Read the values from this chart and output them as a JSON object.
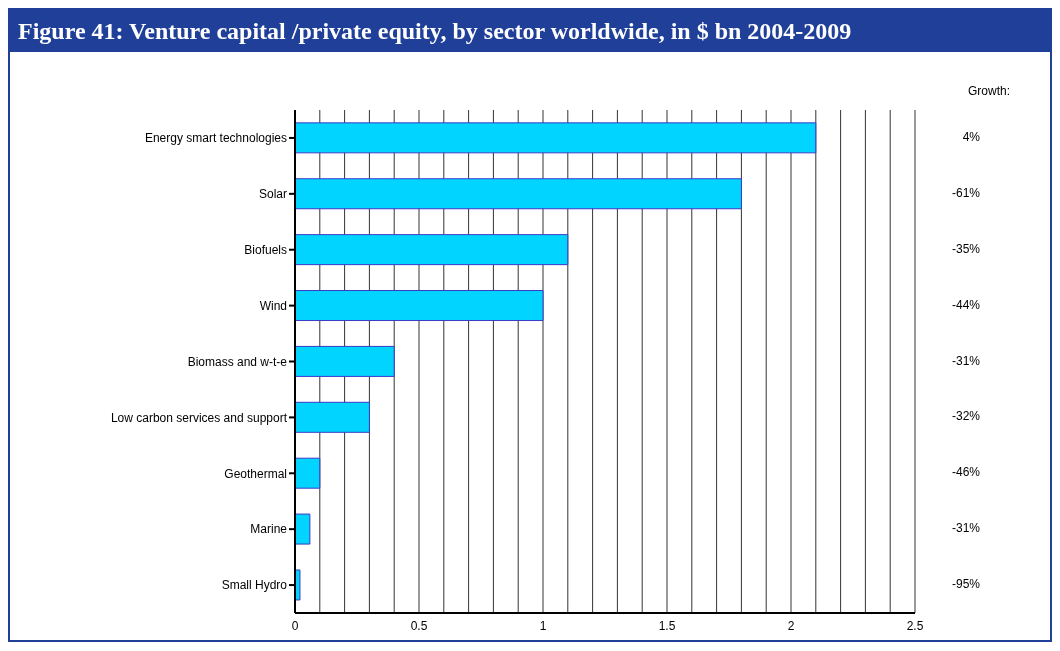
{
  "chart_data": {
    "type": "bar",
    "orientation": "horizontal",
    "title": "Figure 41:  Venture capital /private equity, by sector worldwide, in $ bn 2004-2009",
    "categories": [
      "Energy smart technologies",
      "Solar",
      "Biofuels",
      "Wind",
      "Biomass and w-t-e",
      "Low carbon services and support",
      "Geothermal",
      "Marine",
      "Small Hydro"
    ],
    "values": [
      2.1,
      1.8,
      1.1,
      1.0,
      0.4,
      0.3,
      0.1,
      0.06,
      0.02
    ],
    "color": "#00d4ff",
    "xlim": [
      0,
      2.5
    ],
    "xticks": [
      0,
      {
        "value": 0.1,
        "label": null
      },
      {
        "value": 0.2,
        "label": null
      },
      {
        "value": 0.3,
        "label": null
      },
      {
        "value": 0.4,
        "label": null
      },
      0.5,
      {
        "value": 0.6,
        "label": null
      },
      {
        "value": 0.7,
        "label": null
      },
      {
        "value": 0.8,
        "label": null
      },
      {
        "value": 0.9,
        "label": null
      },
      1,
      {
        "value": 1.1,
        "label": null
      },
      {
        "value": 1.2,
        "label": null
      },
      {
        "value": 1.3,
        "label": null
      },
      {
        "value": 1.4,
        "label": null
      },
      1.5,
      {
        "value": 1.6,
        "label": null
      },
      {
        "value": 1.7,
        "label": null
      },
      {
        "value": 1.8,
        "label": null
      },
      {
        "value": 1.9,
        "label": null
      },
      2,
      {
        "value": 2.1,
        "label": null
      },
      {
        "value": 2.2,
        "label": null
      },
      {
        "value": 2.3,
        "label": null
      },
      {
        "value": 2.4,
        "label": null
      },
      2.5
    ],
    "grid": "x",
    "annotations": [
      "Growth:",
      "4%",
      "-61%",
      "-35%",
      "-44%",
      "-31%",
      "-32%",
      "-46%",
      "-31%",
      "-95%"
    ]
  }
}
